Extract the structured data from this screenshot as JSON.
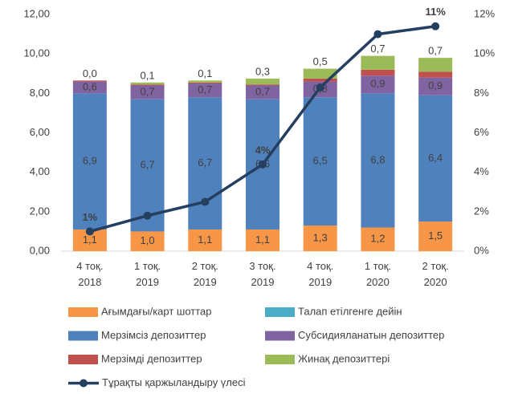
{
  "chart_data": {
    "type": "bar",
    "categories": [
      [
        "4 тоқ.",
        "2018"
      ],
      [
        "1 тоқ.",
        "2019"
      ],
      [
        "2 тоқ.",
        "2019"
      ],
      [
        "3 тоқ.",
        "2019"
      ],
      [
        "4 тоқ.",
        "2019"
      ],
      [
        "1 тоқ.",
        "2020"
      ],
      [
        "2 тоқ.",
        "2020"
      ]
    ],
    "series": [
      {
        "name": "Ағымдағы/карт шоттар",
        "color": "#F79646",
        "values": [
          1.1,
          1.0,
          1.1,
          1.1,
          1.3,
          1.2,
          1.5
        ],
        "value_labels": [
          "1,1",
          "1,0",
          "1,1",
          "1,1",
          "1,3",
          "1,2",
          "1,5"
        ]
      },
      {
        "name": "Талап етілгенге дейін",
        "color": "#4BACC6",
        "values": [
          0,
          0,
          0,
          0,
          0,
          0,
          0
        ]
      },
      {
        "name": "Мерзімсіз депозиттер",
        "color": "#4F81BD",
        "values": [
          6.9,
          6.7,
          6.7,
          6.6,
          6.5,
          6.8,
          6.4
        ],
        "value_labels": [
          "6,9",
          "6,7",
          "6,7",
          "6,6",
          "6,5",
          "6,8",
          "6,4"
        ]
      },
      {
        "name": "Субсидияланатын депозиттер",
        "color": "#8064A2",
        "values": [
          0.6,
          0.7,
          0.7,
          0.7,
          0.8,
          0.9,
          0.9
        ],
        "value_labels": [
          "0,6",
          "0,7",
          "0,7",
          "0,7",
          "0,8",
          "0,9",
          "0,9"
        ]
      },
      {
        "name": "Мерзімді депозиттер",
        "color": "#C0504D",
        "values": [
          0.05,
          0.05,
          0.05,
          0.05,
          0.15,
          0.3,
          0.3
        ]
      },
      {
        "name": "Жинақ депозиттері",
        "color": "#9BBB59",
        "values": [
          0.0,
          0.1,
          0.1,
          0.3,
          0.5,
          0.7,
          0.7
        ],
        "value_labels": [
          "0,0",
          "0,1",
          "0,1",
          "0,3",
          "0,5",
          "0,7",
          "0,7"
        ]
      },
      {
        "name": "Тұрақты қаржыландыру үлесі",
        "color": "#243F60",
        "type": "line",
        "axis": "y2",
        "values": [
          1,
          1.8,
          2.5,
          4.4,
          8.3,
          11,
          11.4
        ],
        "value_labels": [
          "1%",
          null,
          null,
          "4%",
          null,
          null,
          "11%"
        ]
      }
    ],
    "ylim": [
      0,
      12
    ],
    "yticks": [
      {
        "value": 0,
        "label": "0,00"
      },
      {
        "value": 2,
        "label": "2,00"
      },
      {
        "value": 4,
        "label": "4,00"
      },
      {
        "value": 6,
        "label": "6,00"
      },
      {
        "value": 8,
        "label": "8,00"
      },
      {
        "value": 10,
        "label": "10,00"
      },
      {
        "value": 12,
        "label": "12,00"
      }
    ],
    "y2lim": [
      0,
      12
    ],
    "y2ticks": [
      {
        "value": 0,
        "label": "0%"
      },
      {
        "value": 2,
        "label": "2%"
      },
      {
        "value": 4,
        "label": "4%"
      },
      {
        "value": 6,
        "label": "6%"
      },
      {
        "value": 8,
        "label": "8%"
      },
      {
        "value": 10,
        "label": "10%"
      },
      {
        "value": 12,
        "label": "12%"
      }
    ],
    "grid": false,
    "legend": "bottom"
  }
}
